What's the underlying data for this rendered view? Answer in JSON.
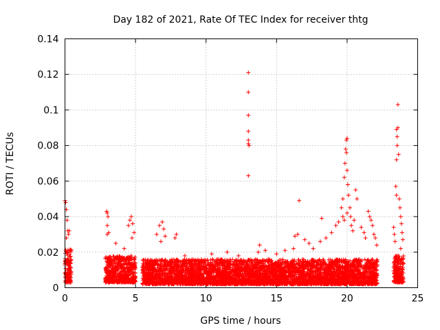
{
  "chart_data": {
    "type": "scatter",
    "title": "Day 182 of 2021, Rate Of TEC Index for receiver thtg",
    "xlabel": "GPS time / hours",
    "ylabel": "ROTI / TECUs",
    "xlim": [
      0,
      25
    ],
    "ylim": [
      0,
      0.14
    ],
    "xticks": [
      0,
      5,
      10,
      15,
      20,
      25
    ],
    "xtick_labels": [
      "0",
      "5",
      "10",
      "15",
      "20",
      "25"
    ],
    "yticks": [
      0,
      0.02,
      0.04,
      0.06,
      0.08,
      0.1,
      0.12,
      0.14
    ],
    "ytick_labels": [
      "0",
      "0.02",
      "0.04",
      "0.06",
      "0.08",
      "0.1",
      "0.12",
      "0.14"
    ],
    "grid": true,
    "marker": "+",
    "color": "#ff0000",
    "clusters": [
      {
        "x_start": 0.0,
        "x_end": 0.45,
        "y_min": 0.003,
        "y_max": 0.022
      },
      {
        "x_start": 2.85,
        "x_end": 5.0,
        "y_min": 0.003,
        "y_max": 0.018
      },
      {
        "x_start": 5.5,
        "x_end": 22.15,
        "y_min": 0.002,
        "y_max": 0.016
      },
      {
        "x_start": 23.3,
        "x_end": 24.0,
        "y_min": 0.003,
        "y_max": 0.018
      }
    ],
    "series": [
      {
        "name": "peaks",
        "points": [
          [
            0.0,
            0.049
          ],
          [
            0.05,
            0.048
          ],
          [
            0.1,
            0.044
          ],
          [
            0.15,
            0.038
          ],
          [
            0.2,
            0.032
          ],
          [
            0.25,
            0.03
          ],
          [
            0.3,
            0.032
          ],
          [
            0.1,
            0.028
          ],
          [
            2.95,
            0.043
          ],
          [
            3.0,
            0.042
          ],
          [
            3.05,
            0.04
          ],
          [
            3.0,
            0.035
          ],
          [
            3.1,
            0.031
          ],
          [
            3.0,
            0.03
          ],
          [
            3.6,
            0.025
          ],
          [
            4.2,
            0.022
          ],
          [
            4.5,
            0.035
          ],
          [
            4.6,
            0.038
          ],
          [
            4.7,
            0.04
          ],
          [
            4.8,
            0.036
          ],
          [
            4.9,
            0.031
          ],
          [
            4.75,
            0.028
          ],
          [
            6.5,
            0.03
          ],
          [
            6.7,
            0.035
          ],
          [
            6.9,
            0.037
          ],
          [
            7.0,
            0.033
          ],
          [
            7.1,
            0.029
          ],
          [
            6.8,
            0.026
          ],
          [
            7.8,
            0.028
          ],
          [
            7.9,
            0.03
          ],
          [
            8.5,
            0.018
          ],
          [
            10.4,
            0.019
          ],
          [
            11.5,
            0.02
          ],
          [
            12.3,
            0.018
          ],
          [
            13.0,
            0.121
          ],
          [
            13.0,
            0.11
          ],
          [
            13.0,
            0.097
          ],
          [
            13.0,
            0.088
          ],
          [
            13.0,
            0.083
          ],
          [
            13.0,
            0.081
          ],
          [
            13.05,
            0.08
          ],
          [
            13.0,
            0.063
          ],
          [
            13.7,
            0.02
          ],
          [
            13.8,
            0.024
          ],
          [
            14.2,
            0.021
          ],
          [
            15.0,
            0.019
          ],
          [
            15.6,
            0.021
          ],
          [
            16.2,
            0.022
          ],
          [
            16.3,
            0.029
          ],
          [
            16.5,
            0.03
          ],
          [
            16.6,
            0.049
          ],
          [
            17.0,
            0.027
          ],
          [
            17.3,
            0.025
          ],
          [
            17.6,
            0.022
          ],
          [
            18.2,
            0.039
          ],
          [
            18.1,
            0.026
          ],
          [
            18.5,
            0.028
          ],
          [
            18.9,
            0.031
          ],
          [
            19.2,
            0.035
          ],
          [
            19.4,
            0.037
          ],
          [
            19.6,
            0.045
          ],
          [
            19.7,
            0.05
          ],
          [
            19.8,
            0.062
          ],
          [
            19.85,
            0.07
          ],
          [
            19.9,
            0.078
          ],
          [
            19.95,
            0.083
          ],
          [
            20.0,
            0.084
          ],
          [
            19.95,
            0.076
          ],
          [
            20.0,
            0.066
          ],
          [
            20.05,
            0.058
          ],
          [
            20.1,
            0.052
          ],
          [
            20.2,
            0.045
          ],
          [
            20.25,
            0.04
          ],
          [
            20.3,
            0.035
          ],
          [
            19.7,
            0.04
          ],
          [
            19.8,
            0.038
          ],
          [
            20.0,
            0.042
          ],
          [
            20.4,
            0.032
          ],
          [
            20.6,
            0.055
          ],
          [
            20.7,
            0.05
          ],
          [
            20.5,
            0.038
          ],
          [
            21.0,
            0.034
          ],
          [
            21.2,
            0.031
          ],
          [
            21.3,
            0.028
          ],
          [
            21.5,
            0.043
          ],
          [
            21.6,
            0.04
          ],
          [
            21.7,
            0.038
          ],
          [
            21.8,
            0.035
          ],
          [
            21.9,
            0.03
          ],
          [
            22.0,
            0.028
          ],
          [
            22.1,
            0.024
          ],
          [
            23.3,
            0.034
          ],
          [
            23.35,
            0.03
          ],
          [
            23.4,
            0.026
          ],
          [
            23.45,
            0.057
          ],
          [
            23.5,
            0.052
          ],
          [
            23.5,
            0.072
          ],
          [
            23.55,
            0.08
          ],
          [
            23.55,
            0.085
          ],
          [
            23.5,
            0.089
          ],
          [
            23.6,
            0.09
          ],
          [
            23.6,
            0.103
          ],
          [
            23.65,
            0.075
          ],
          [
            23.7,
            0.05
          ],
          [
            23.75,
            0.045
          ],
          [
            23.8,
            0.04
          ],
          [
            23.85,
            0.036
          ],
          [
            23.9,
            0.031
          ],
          [
            23.95,
            0.027
          ],
          [
            23.8,
            0.022
          ]
        ]
      }
    ]
  }
}
